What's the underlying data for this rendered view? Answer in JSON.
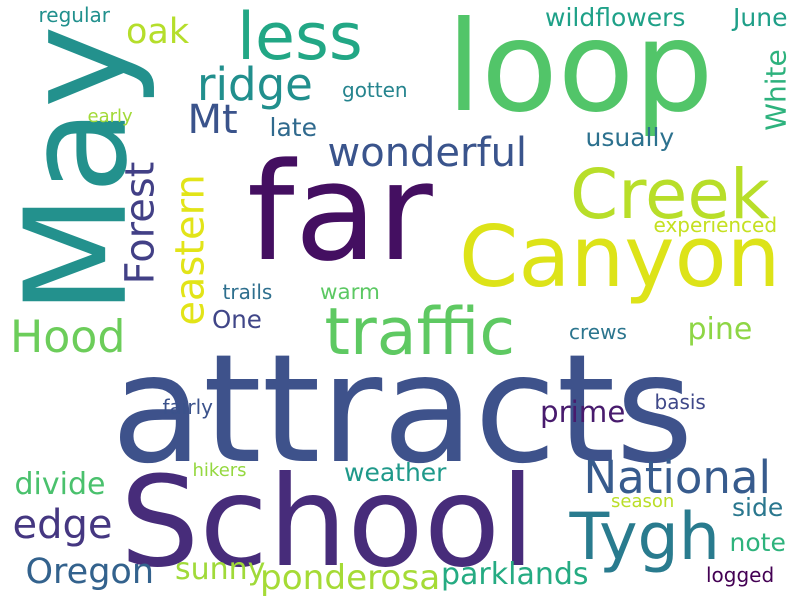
{
  "words": [
    {
      "text": "attracts",
      "color": "#3e528b"
    },
    {
      "text": "far",
      "color": "#440f61"
    },
    {
      "text": "loop",
      "color": "#52c569"
    },
    {
      "text": "May",
      "color": "#23918d"
    },
    {
      "text": "School",
      "color": "#472c7a"
    },
    {
      "text": "Canyon",
      "color": "#dde318"
    },
    {
      "text": "traffic",
      "color": "#5ec962"
    },
    {
      "text": "Creek",
      "color": "#b8de29"
    },
    {
      "text": "less",
      "color": "#22a785"
    },
    {
      "text": "Tygh",
      "color": "#297b8e"
    },
    {
      "text": "wonderful",
      "color": "#3a548c"
    },
    {
      "text": "ridge",
      "color": "#218f8d"
    },
    {
      "text": "National",
      "color": "#375b8d"
    },
    {
      "text": "Hood",
      "color": "#6ccd5a"
    },
    {
      "text": "edge",
      "color": "#453781"
    },
    {
      "text": "Forest",
      "color": "#424086"
    },
    {
      "text": "eastern",
      "color": "#e2e418"
    },
    {
      "text": "Oregon",
      "color": "#33628d"
    },
    {
      "text": "ponderosa",
      "color": "#a5db36"
    },
    {
      "text": "parklands",
      "color": "#25ab82"
    },
    {
      "text": "Mt",
      "color": "#3a538b"
    },
    {
      "text": "weather",
      "color": "#1f998a"
    },
    {
      "text": "wildflowers",
      "color": "#1fa188"
    },
    {
      "text": "usually",
      "color": "#2c718e"
    },
    {
      "text": "oak",
      "color": "#b5de2b"
    },
    {
      "text": "pine",
      "color": "#8ed645"
    },
    {
      "text": "June",
      "color": "#1f9f88"
    },
    {
      "text": "White",
      "color": "#2db27d"
    },
    {
      "text": "sunny",
      "color": "#a0da39"
    },
    {
      "text": "prime",
      "color": "#481b6d"
    },
    {
      "text": "warm",
      "color": "#5cc863"
    },
    {
      "text": "late",
      "color": "#306a8e"
    },
    {
      "text": "side",
      "color": "#2a778e"
    },
    {
      "text": "note",
      "color": "#2eb37c"
    },
    {
      "text": "divide",
      "color": "#4ac16d"
    },
    {
      "text": "One",
      "color": "#404688"
    },
    {
      "text": "gotten",
      "color": "#25848e"
    },
    {
      "text": "trails",
      "color": "#2e6f8e"
    },
    {
      "text": "crews",
      "color": "#2b758e"
    },
    {
      "text": "regular",
      "color": "#21908d"
    },
    {
      "text": "experienced",
      "color": "#c5e021"
    },
    {
      "text": "fairly",
      "color": "#3b528b"
    },
    {
      "text": "basis",
      "color": "#3f4889"
    },
    {
      "text": "hikers",
      "color": "#95d840"
    },
    {
      "text": "early",
      "color": "#a2da37"
    },
    {
      "text": "season",
      "color": "#bade28"
    },
    {
      "text": "logged",
      "color": "#440154"
    }
  ]
}
